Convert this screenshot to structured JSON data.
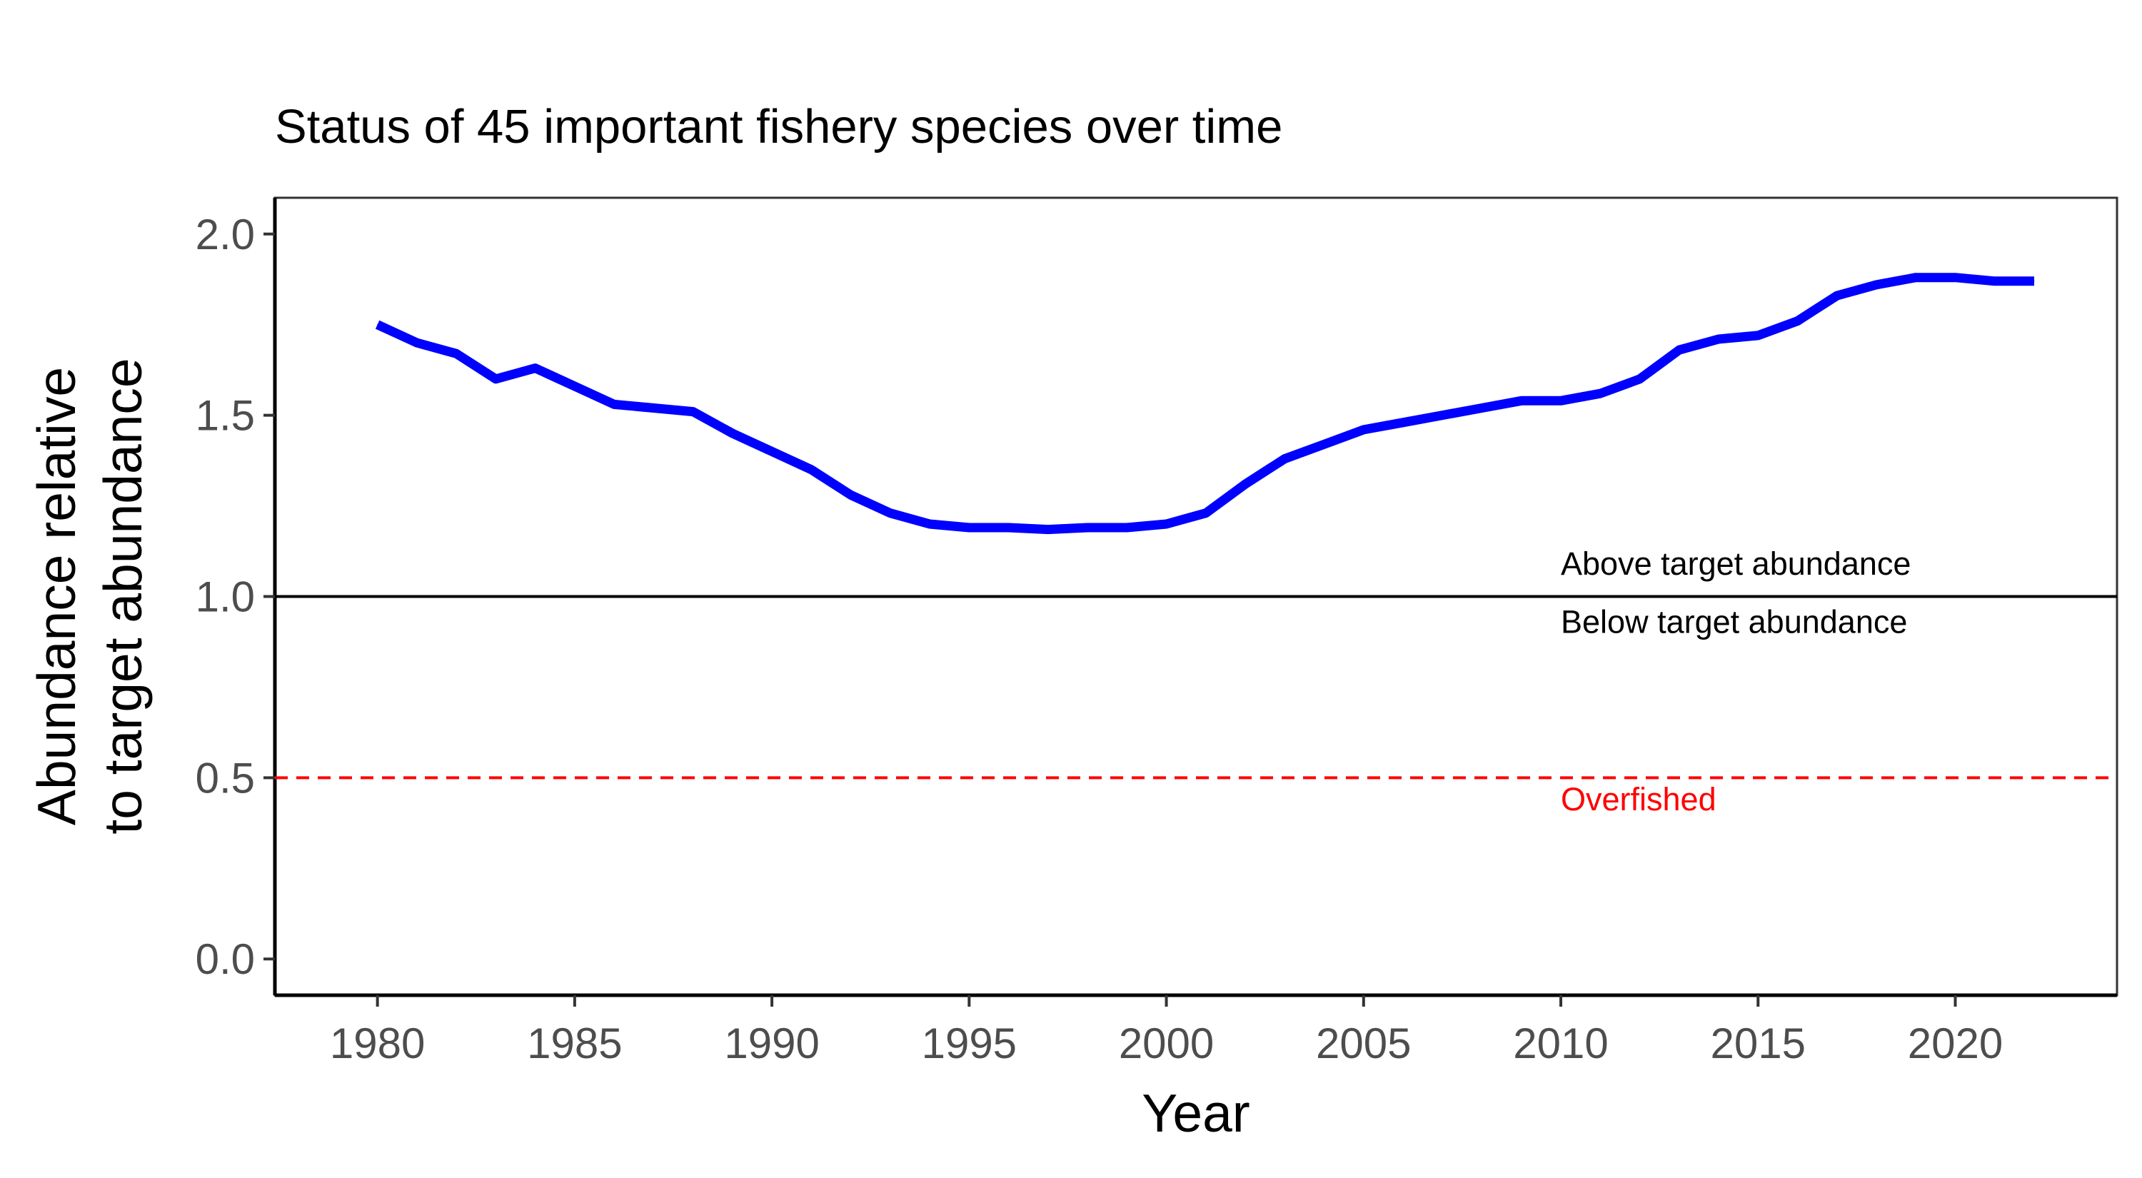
{
  "chart_data": {
    "type": "line",
    "title": "Status of 45 important fishery species over time",
    "xlabel": "Year",
    "ylabel_line1": "Abundance relative",
    "ylabel_line2": "to target abundance",
    "xlim": [
      1977.4,
      2024.1
    ],
    "ylim": [
      -0.1,
      2.1
    ],
    "x_ticks": [
      1980,
      1985,
      1990,
      1995,
      2000,
      2005,
      2010,
      2015,
      2020
    ],
    "y_ticks": [
      0.0,
      0.5,
      1.0,
      1.5,
      2.0
    ],
    "y_tick_labels": [
      "0.0",
      "0.5",
      "1.0",
      "1.5",
      "2.0"
    ],
    "grid": false,
    "series": [
      {
        "color": "#0000ff",
        "x": [
          1980,
          1981,
          1982,
          1983,
          1984,
          1985,
          1986,
          1987,
          1988,
          1989,
          1990,
          1991,
          1992,
          1993,
          1994,
          1995,
          1996,
          1997,
          1998,
          1999,
          2000,
          2001,
          2002,
          2003,
          2004,
          2005,
          2006,
          2007,
          2008,
          2009,
          2010,
          2011,
          2012,
          2013,
          2014,
          2015,
          2016,
          2017,
          2018,
          2019,
          2020,
          2021,
          2022
        ],
        "y": [
          1.75,
          1.7,
          1.67,
          1.6,
          1.63,
          1.58,
          1.53,
          1.52,
          1.51,
          1.45,
          1.4,
          1.35,
          1.28,
          1.23,
          1.2,
          1.19,
          1.19,
          1.185,
          1.19,
          1.19,
          1.2,
          1.23,
          1.31,
          1.38,
          1.42,
          1.46,
          1.48,
          1.5,
          1.52,
          1.54,
          1.54,
          1.56,
          1.6,
          1.68,
          1.71,
          1.72,
          1.76,
          1.83,
          1.86,
          1.88,
          1.88,
          1.87,
          1.87
        ]
      }
    ],
    "reference_lines": [
      {
        "y": 1.0,
        "color": "#000000",
        "style": "solid"
      },
      {
        "y": 0.5,
        "color": "#ff0000",
        "style": "dashed"
      }
    ],
    "annotations": [
      {
        "text": "Above target abundance",
        "x": 2010,
        "y": 1.06,
        "color": "#000000"
      },
      {
        "text": "Below target abundance",
        "x": 2010,
        "y": 0.9,
        "color": "#000000"
      },
      {
        "text": "Overfished",
        "x": 2010,
        "y": 0.41,
        "color": "#ff0000"
      }
    ]
  }
}
